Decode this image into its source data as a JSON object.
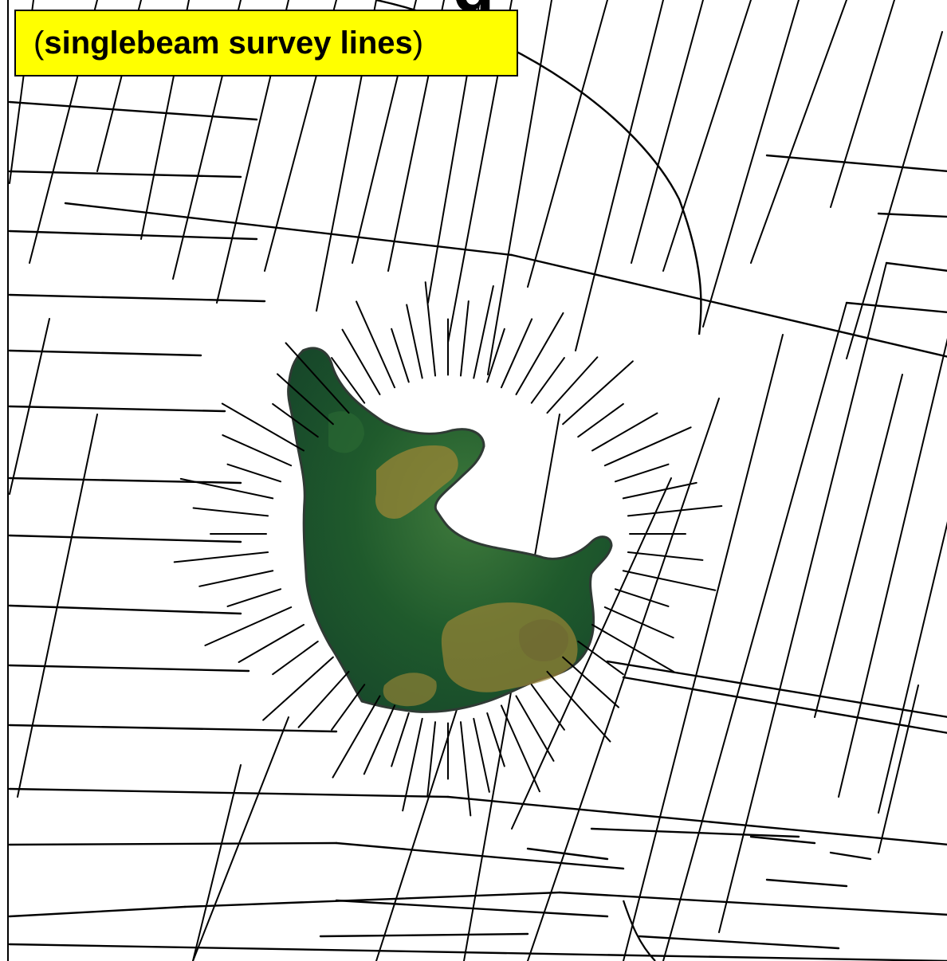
{
  "title_fragment": "g",
  "caption": {
    "open_paren": "(",
    "label": "singlebeam survey lines",
    "close_paren": ")"
  },
  "colors": {
    "caption_background": "#ffff00",
    "track_lines": "#000000",
    "island_lowland": "#1f5a2c",
    "island_highland": "#9a8536"
  },
  "map_features": [
    "survey-track-lines",
    "island-relief",
    "island-radial-tracks"
  ]
}
